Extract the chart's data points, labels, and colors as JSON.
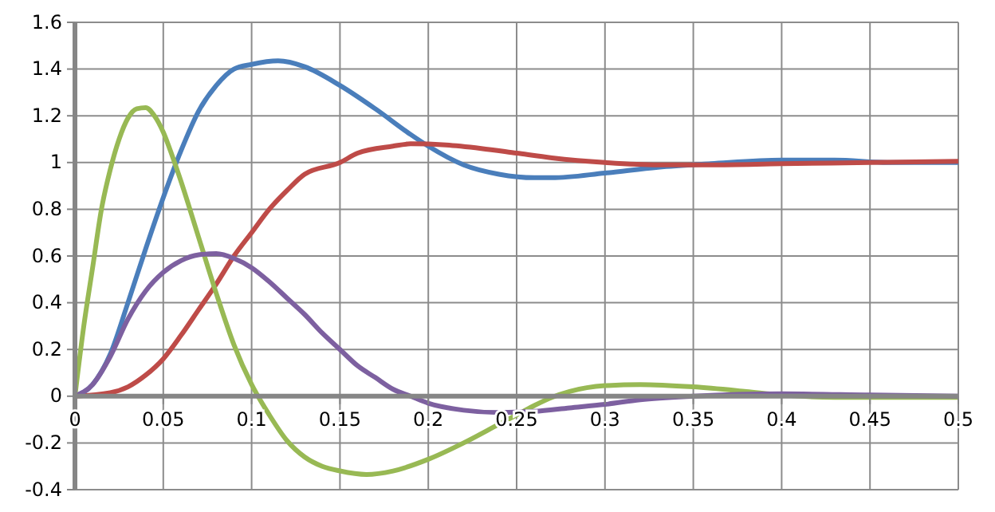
{
  "chart_data": {
    "type": "line",
    "xlim": [
      0,
      0.5
    ],
    "ylim": [
      -0.4,
      1.6
    ],
    "xticks": [
      0,
      0.05,
      0.1,
      0.15,
      0.2,
      0.25,
      0.3,
      0.35,
      0.4,
      0.45,
      0.5
    ],
    "yticks": [
      -0.4,
      -0.2,
      0,
      0.2,
      0.4,
      0.6,
      0.8,
      1,
      1.2,
      1.4,
      1.6
    ],
    "grid": true,
    "marker": "none",
    "line_style": "solid",
    "series": [
      {
        "color": "#4a7ebb",
        "x": [
          0,
          0.01,
          0.02,
          0.03,
          0.04,
          0.05,
          0.06,
          0.07,
          0.08,
          0.09,
          0.1,
          0.115,
          0.13,
          0.15,
          0.17,
          0.19,
          0.2,
          0.22,
          0.24,
          0.26,
          0.27,
          0.3,
          0.33,
          0.36,
          0.4,
          0.43,
          0.46,
          0.5
        ],
        "values": [
          0,
          0.05,
          0.18,
          0.4,
          0.63,
          0.85,
          1.05,
          1.22,
          1.33,
          1.4,
          1.42,
          1.435,
          1.41,
          1.33,
          1.23,
          1.12,
          1.07,
          0.99,
          0.95,
          0.935,
          0.935,
          0.955,
          0.98,
          0.995,
          1.01,
          1.01,
          1.0,
          1.0
        ]
      },
      {
        "color": "#be4b48",
        "x": [
          0,
          0.02,
          0.03,
          0.04,
          0.05,
          0.06,
          0.07,
          0.08,
          0.09,
          0.1,
          0.11,
          0.12,
          0.13,
          0.15,
          0.16,
          0.18,
          0.19,
          0.21,
          0.23,
          0.25,
          0.27,
          0.3,
          0.33,
          0.36,
          0.4,
          0.45,
          0.5
        ],
        "values": [
          0,
          0.015,
          0.04,
          0.09,
          0.16,
          0.26,
          0.37,
          0.48,
          0.6,
          0.7,
          0.8,
          0.88,
          0.95,
          1.0,
          1.04,
          1.07,
          1.08,
          1.075,
          1.06,
          1.04,
          1.02,
          1.0,
          0.99,
          0.99,
          0.995,
          1.0,
          1.005
        ]
      },
      {
        "color": "#98b954",
        "x": [
          0,
          0.005,
          0.01,
          0.015,
          0.02,
          0.025,
          0.03,
          0.035,
          0.04,
          0.045,
          0.05,
          0.055,
          0.06,
          0.07,
          0.08,
          0.09,
          0.1,
          0.11,
          0.12,
          0.13,
          0.14,
          0.15,
          0.165,
          0.18,
          0.2,
          0.22,
          0.24,
          0.25,
          0.26,
          0.27,
          0.28,
          0.3,
          0.32,
          0.35,
          0.38,
          0.4,
          0.43,
          0.46,
          0.5
        ],
        "values": [
          0,
          0.3,
          0.55,
          0.8,
          0.97,
          1.1,
          1.19,
          1.23,
          1.235,
          1.2,
          1.13,
          1.03,
          0.92,
          0.68,
          0.44,
          0.22,
          0.05,
          -0.08,
          -0.19,
          -0.26,
          -0.3,
          -0.32,
          -0.335,
          -0.32,
          -0.27,
          -0.2,
          -0.12,
          -0.08,
          -0.04,
          -0.005,
          0.02,
          0.045,
          0.05,
          0.04,
          0.02,
          0.005,
          -0.005,
          -0.005,
          -0.005
        ]
      },
      {
        "color": "#7d60a0",
        "x": [
          0,
          0.01,
          0.02,
          0.03,
          0.04,
          0.05,
          0.06,
          0.07,
          0.08,
          0.09,
          0.1,
          0.11,
          0.12,
          0.13,
          0.14,
          0.15,
          0.16,
          0.17,
          0.18,
          0.19,
          0.2,
          0.22,
          0.24,
          0.26,
          0.28,
          0.3,
          0.32,
          0.35,
          0.4,
          0.45,
          0.5
        ],
        "values": [
          0,
          0.05,
          0.17,
          0.33,
          0.45,
          0.53,
          0.58,
          0.605,
          0.61,
          0.59,
          0.55,
          0.49,
          0.42,
          0.35,
          0.27,
          0.2,
          0.13,
          0.08,
          0.03,
          0.0,
          -0.03,
          -0.06,
          -0.07,
          -0.065,
          -0.05,
          -0.035,
          -0.015,
          0.0,
          0.01,
          0.005,
          0.0
        ]
      }
    ]
  }
}
